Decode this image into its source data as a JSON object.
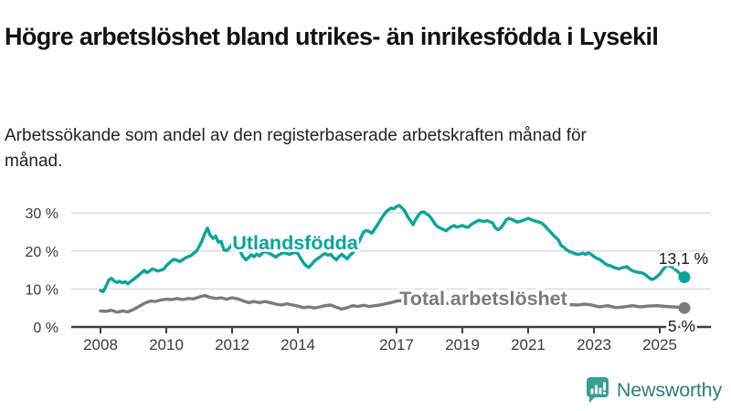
{
  "chart_data": {
    "type": "line",
    "title": "Högre arbetslöshet bland utrikes- än inrikesfödda i Lysekil",
    "subtitle": "Arbetssökande som andel av den registerbaserade arbetskraften månad för månad.",
    "grid": "horizontal",
    "legend_position": "inline-labels",
    "x_axis": {
      "ticks": [
        2008,
        2010,
        2012,
        2014,
        2017,
        2019,
        2021,
        2023,
        2025
      ],
      "range": [
        2008,
        2025.83
      ]
    },
    "y_axis": {
      "ticks": [
        0,
        10,
        20,
        30
      ],
      "suffix": " %",
      "range": [
        0,
        33
      ]
    },
    "colors": {
      "grid": "#d7d7d7",
      "axis": "#3f3f3f",
      "tick_text": "#3b3b3b",
      "value_label": "#1a1a1a"
    },
    "series": [
      {
        "id": "utlandsfodda",
        "name": "Utlandsfödda",
        "color": "#0ba39a",
        "end_label": "13,1 %",
        "end_value": 13.1,
        "points": [
          [
            2008.0,
            9.6
          ],
          [
            2008.08,
            9.3
          ],
          [
            2008.17,
            10.8
          ],
          [
            2008.25,
            12.3
          ],
          [
            2008.33,
            12.8
          ],
          [
            2008.42,
            12.1
          ],
          [
            2008.5,
            11.7
          ],
          [
            2008.58,
            12.0
          ],
          [
            2008.67,
            11.6
          ],
          [
            2008.75,
            11.9
          ],
          [
            2008.83,
            11.4
          ],
          [
            2008.92,
            12.0
          ],
          [
            2009.0,
            12.5
          ],
          [
            2009.17,
            13.7
          ],
          [
            2009.33,
            14.9
          ],
          [
            2009.42,
            14.3
          ],
          [
            2009.58,
            15.3
          ],
          [
            2009.75,
            14.7
          ],
          [
            2009.92,
            15.2
          ],
          [
            2010.0,
            16.1
          ],
          [
            2010.17,
            17.5
          ],
          [
            2010.25,
            17.8
          ],
          [
            2010.42,
            17.2
          ],
          [
            2010.58,
            18.2
          ],
          [
            2010.75,
            18.8
          ],
          [
            2010.92,
            20.0
          ],
          [
            2011.0,
            21.2
          ],
          [
            2011.08,
            22.6
          ],
          [
            2011.17,
            24.6
          ],
          [
            2011.25,
            26.0
          ],
          [
            2011.33,
            24.2
          ],
          [
            2011.42,
            23.3
          ],
          [
            2011.5,
            23.9
          ],
          [
            2011.58,
            22.3
          ],
          [
            2011.67,
            22.5
          ],
          [
            2011.75,
            20.3
          ],
          [
            2011.83,
            20.1
          ],
          [
            2011.92,
            20.8
          ],
          [
            2012.0,
            21.9
          ],
          [
            2012.08,
            21.3
          ],
          [
            2012.17,
            21.5
          ],
          [
            2012.25,
            19.9
          ],
          [
            2012.33,
            18.5
          ],
          [
            2012.42,
            17.7
          ],
          [
            2012.5,
            18.3
          ],
          [
            2012.58,
            19.0
          ],
          [
            2012.67,
            18.5
          ],
          [
            2012.75,
            19.2
          ],
          [
            2012.83,
            18.7
          ],
          [
            2012.92,
            19.4
          ],
          [
            2013.0,
            19.9
          ],
          [
            2013.17,
            19.2
          ],
          [
            2013.33,
            18.4
          ],
          [
            2013.42,
            19.0
          ],
          [
            2013.58,
            19.6
          ],
          [
            2013.75,
            19.1
          ],
          [
            2013.92,
            19.7
          ],
          [
            2014.0,
            19.3
          ],
          [
            2014.08,
            18.1
          ],
          [
            2014.17,
            16.9
          ],
          [
            2014.25,
            16.1
          ],
          [
            2014.33,
            15.7
          ],
          [
            2014.42,
            16.5
          ],
          [
            2014.5,
            17.3
          ],
          [
            2014.58,
            17.9
          ],
          [
            2014.67,
            18.4
          ],
          [
            2014.75,
            19.0
          ],
          [
            2014.83,
            19.3
          ],
          [
            2014.92,
            18.9
          ],
          [
            2015.0,
            19.1
          ],
          [
            2015.08,
            18.3
          ],
          [
            2015.17,
            17.7
          ],
          [
            2015.25,
            18.5
          ],
          [
            2015.33,
            19.1
          ],
          [
            2015.42,
            18.5
          ],
          [
            2015.5,
            17.9
          ],
          [
            2015.58,
            18.9
          ],
          [
            2015.67,
            19.5
          ],
          [
            2015.75,
            20.7
          ],
          [
            2015.83,
            21.9
          ],
          [
            2015.92,
            23.6
          ],
          [
            2016.0,
            25.0
          ],
          [
            2016.08,
            25.4
          ],
          [
            2016.17,
            25.1
          ],
          [
            2016.25,
            24.7
          ],
          [
            2016.33,
            25.7
          ],
          [
            2016.42,
            26.9
          ],
          [
            2016.5,
            28.0
          ],
          [
            2016.58,
            29.1
          ],
          [
            2016.67,
            30.2
          ],
          [
            2016.75,
            30.8
          ],
          [
            2016.83,
            31.3
          ],
          [
            2016.92,
            31.1
          ],
          [
            2017.0,
            31.7
          ],
          [
            2017.08,
            32.0
          ],
          [
            2017.17,
            31.3
          ],
          [
            2017.25,
            30.5
          ],
          [
            2017.33,
            29.1
          ],
          [
            2017.42,
            28.0
          ],
          [
            2017.5,
            26.9
          ],
          [
            2017.58,
            28.3
          ],
          [
            2017.67,
            29.5
          ],
          [
            2017.75,
            30.2
          ],
          [
            2017.83,
            30.3
          ],
          [
            2017.92,
            29.7
          ],
          [
            2018.0,
            29.2
          ],
          [
            2018.08,
            28.3
          ],
          [
            2018.17,
            27.1
          ],
          [
            2018.25,
            26.4
          ],
          [
            2018.33,
            26.0
          ],
          [
            2018.42,
            25.7
          ],
          [
            2018.5,
            25.3
          ],
          [
            2018.58,
            25.9
          ],
          [
            2018.67,
            26.4
          ],
          [
            2018.75,
            26.7
          ],
          [
            2018.83,
            26.3
          ],
          [
            2018.92,
            26.5
          ],
          [
            2019.0,
            26.7
          ],
          [
            2019.08,
            26.4
          ],
          [
            2019.17,
            26.2
          ],
          [
            2019.25,
            26.8
          ],
          [
            2019.33,
            27.3
          ],
          [
            2019.42,
            27.7
          ],
          [
            2019.5,
            28.1
          ],
          [
            2019.58,
            27.9
          ],
          [
            2019.67,
            27.8
          ],
          [
            2019.75,
            28.0
          ],
          [
            2019.83,
            27.7
          ],
          [
            2019.92,
            27.4
          ],
          [
            2020.0,
            26.1
          ],
          [
            2020.08,
            25.6
          ],
          [
            2020.17,
            26.0
          ],
          [
            2020.25,
            27.1
          ],
          [
            2020.33,
            28.1
          ],
          [
            2020.42,
            28.6
          ],
          [
            2020.5,
            28.3
          ],
          [
            2020.58,
            28.0
          ],
          [
            2020.67,
            27.6
          ],
          [
            2020.75,
            27.8
          ],
          [
            2020.83,
            28.0
          ],
          [
            2020.92,
            28.3
          ],
          [
            2021.0,
            28.6
          ],
          [
            2021.08,
            28.3
          ],
          [
            2021.17,
            28.0
          ],
          [
            2021.25,
            27.8
          ],
          [
            2021.33,
            27.6
          ],
          [
            2021.42,
            27.3
          ],
          [
            2021.5,
            26.7
          ],
          [
            2021.58,
            25.9
          ],
          [
            2021.67,
            25.1
          ],
          [
            2021.75,
            24.3
          ],
          [
            2021.83,
            23.6
          ],
          [
            2021.92,
            22.9
          ],
          [
            2022.0,
            21.5
          ],
          [
            2022.08,
            21.0
          ],
          [
            2022.17,
            20.3
          ],
          [
            2022.25,
            19.9
          ],
          [
            2022.33,
            19.6
          ],
          [
            2022.42,
            19.3
          ],
          [
            2022.5,
            19.1
          ],
          [
            2022.58,
            19.2
          ],
          [
            2022.67,
            19.4
          ],
          [
            2022.75,
            19.1
          ],
          [
            2022.83,
            19.5
          ],
          [
            2022.92,
            19.1
          ],
          [
            2023.0,
            18.5
          ],
          [
            2023.08,
            18.1
          ],
          [
            2023.17,
            17.8
          ],
          [
            2023.25,
            17.3
          ],
          [
            2023.33,
            16.7
          ],
          [
            2023.42,
            16.3
          ],
          [
            2023.5,
            16.1
          ],
          [
            2023.58,
            15.8
          ],
          [
            2023.67,
            15.5
          ],
          [
            2023.75,
            15.3
          ],
          [
            2023.83,
            15.5
          ],
          [
            2023.92,
            15.7
          ],
          [
            2024.0,
            15.9
          ],
          [
            2024.08,
            15.3
          ],
          [
            2024.17,
            14.8
          ],
          [
            2024.25,
            14.6
          ],
          [
            2024.33,
            14.4
          ],
          [
            2024.42,
            14.3
          ],
          [
            2024.5,
            14.1
          ],
          [
            2024.58,
            13.6
          ],
          [
            2024.67,
            13.0
          ],
          [
            2024.75,
            12.5
          ],
          [
            2024.83,
            12.7
          ],
          [
            2024.92,
            13.3
          ],
          [
            2025.0,
            13.9
          ],
          [
            2025.08,
            14.9
          ],
          [
            2025.17,
            15.8
          ],
          [
            2025.25,
            16.2
          ],
          [
            2025.33,
            16.0
          ],
          [
            2025.42,
            15.5
          ],
          [
            2025.5,
            14.9
          ],
          [
            2025.58,
            14.3
          ],
          [
            2025.67,
            13.7
          ],
          [
            2025.75,
            13.1
          ]
        ]
      },
      {
        "id": "total",
        "name": "Total arbetslöshet",
        "color": "#7b7b7b",
        "end_label": "5 %",
        "end_value": 5,
        "points": [
          [
            2008.0,
            4.2
          ],
          [
            2008.17,
            4.1
          ],
          [
            2008.33,
            4.4
          ],
          [
            2008.5,
            3.9
          ],
          [
            2008.67,
            4.2
          ],
          [
            2008.83,
            4.0
          ],
          [
            2009.0,
            4.6
          ],
          [
            2009.17,
            5.4
          ],
          [
            2009.33,
            6.2
          ],
          [
            2009.5,
            6.8
          ],
          [
            2009.67,
            6.7
          ],
          [
            2009.83,
            7.1
          ],
          [
            2010.0,
            7.3
          ],
          [
            2010.17,
            7.2
          ],
          [
            2010.33,
            7.5
          ],
          [
            2010.5,
            7.2
          ],
          [
            2010.67,
            7.5
          ],
          [
            2010.83,
            7.4
          ],
          [
            2011.0,
            7.9
          ],
          [
            2011.17,
            8.3
          ],
          [
            2011.33,
            7.8
          ],
          [
            2011.5,
            7.5
          ],
          [
            2011.67,
            7.7
          ],
          [
            2011.83,
            7.3
          ],
          [
            2012.0,
            7.7
          ],
          [
            2012.17,
            7.4
          ],
          [
            2012.33,
            6.9
          ],
          [
            2012.5,
            6.4
          ],
          [
            2012.67,
            6.7
          ],
          [
            2012.83,
            6.4
          ],
          [
            2013.0,
            6.7
          ],
          [
            2013.17,
            6.4
          ],
          [
            2013.33,
            6.0
          ],
          [
            2013.5,
            5.8
          ],
          [
            2013.67,
            6.1
          ],
          [
            2013.83,
            5.8
          ],
          [
            2014.0,
            5.5
          ],
          [
            2014.17,
            5.1
          ],
          [
            2014.33,
            5.3
          ],
          [
            2014.5,
            5.0
          ],
          [
            2014.67,
            5.3
          ],
          [
            2014.83,
            5.6
          ],
          [
            2015.0,
            5.8
          ],
          [
            2015.17,
            5.2
          ],
          [
            2015.33,
            4.7
          ],
          [
            2015.5,
            5.1
          ],
          [
            2015.67,
            5.6
          ],
          [
            2015.83,
            5.4
          ],
          [
            2016.0,
            5.7
          ],
          [
            2016.17,
            5.4
          ],
          [
            2016.33,
            5.6
          ],
          [
            2016.5,
            5.8
          ],
          [
            2016.67,
            6.1
          ],
          [
            2016.83,
            6.4
          ],
          [
            2017.0,
            6.8
          ],
          [
            2017.17,
            7.0
          ],
          [
            2017.33,
            6.9
          ],
          [
            2017.5,
            7.1
          ],
          [
            2017.67,
            7.0
          ],
          [
            2017.83,
            6.8
          ],
          [
            2018.0,
            6.6
          ],
          [
            2018.25,
            6.4
          ],
          [
            2018.5,
            6.2
          ],
          [
            2018.75,
            6.3
          ],
          [
            2019.0,
            6.4
          ],
          [
            2019.25,
            6.5
          ],
          [
            2019.5,
            6.6
          ],
          [
            2019.75,
            6.7
          ],
          [
            2020.0,
            6.8
          ],
          [
            2020.25,
            7.6
          ],
          [
            2020.42,
            8.0
          ],
          [
            2020.58,
            7.8
          ],
          [
            2020.75,
            7.6
          ],
          [
            2021.0,
            7.4
          ],
          [
            2021.25,
            7.1
          ],
          [
            2021.5,
            6.8
          ],
          [
            2021.75,
            6.4
          ],
          [
            2022.0,
            6.1
          ],
          [
            2022.25,
            5.9
          ],
          [
            2022.5,
            5.8
          ],
          [
            2022.75,
            6.0
          ],
          [
            2022.92,
            5.8
          ],
          [
            2023.17,
            5.3
          ],
          [
            2023.42,
            5.6
          ],
          [
            2023.67,
            5.1
          ],
          [
            2023.92,
            5.3
          ],
          [
            2024.17,
            5.6
          ],
          [
            2024.42,
            5.3
          ],
          [
            2024.67,
            5.5
          ],
          [
            2024.92,
            5.6
          ],
          [
            2025.17,
            5.4
          ],
          [
            2025.42,
            5.3
          ],
          [
            2025.58,
            5.2
          ],
          [
            2025.75,
            5.0
          ]
        ]
      }
    ]
  },
  "footer": {
    "brand": "Newsworthy",
    "brand_color": "#2f7f7b",
    "icon_color": "#3a9e96"
  }
}
